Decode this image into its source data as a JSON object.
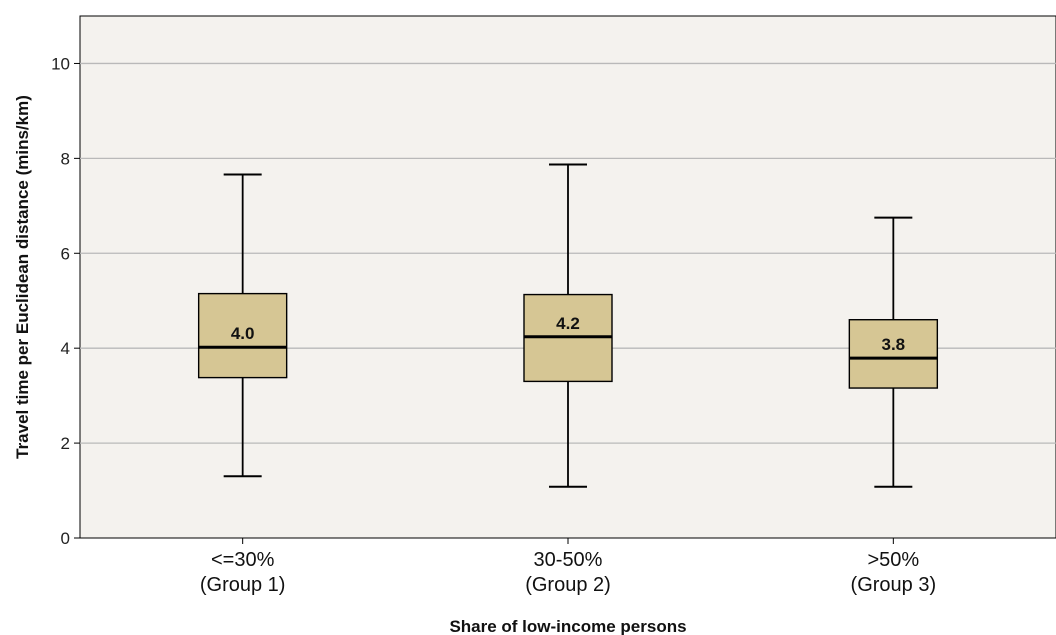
{
  "chart_data": {
    "type": "boxplot",
    "xlabel": "Share of low-income persons",
    "ylabel": "Travel time per Euclidean distance (mins/km)",
    "ylim": [
      0,
      11
    ],
    "yticks": [
      0,
      2,
      4,
      6,
      8,
      10
    ],
    "grid": "horizontal",
    "categories": [
      {
        "line1": "<=30%",
        "line2": "(Group 1)"
      },
      {
        "line1": "30-50%",
        "line2": "(Group 2)"
      },
      {
        "line1": ">50%",
        "line2": "(Group 3)"
      }
    ],
    "boxes": [
      {
        "min": 1.3,
        "q1": 3.38,
        "median": 4.02,
        "q3": 5.15,
        "max": 7.66,
        "label": "4.0"
      },
      {
        "min": 1.08,
        "q1": 3.3,
        "median": 4.24,
        "q3": 5.13,
        "max": 7.87,
        "label": "4.2"
      },
      {
        "min": 1.08,
        "q1": 3.16,
        "median": 3.79,
        "q3": 4.6,
        "max": 6.75,
        "label": "3.8"
      }
    ],
    "colors": {
      "plot_background": "#f4f2ee",
      "box_fill": "#d6c694",
      "stroke": "#000000",
      "gridline": "#b9b9b9"
    }
  }
}
